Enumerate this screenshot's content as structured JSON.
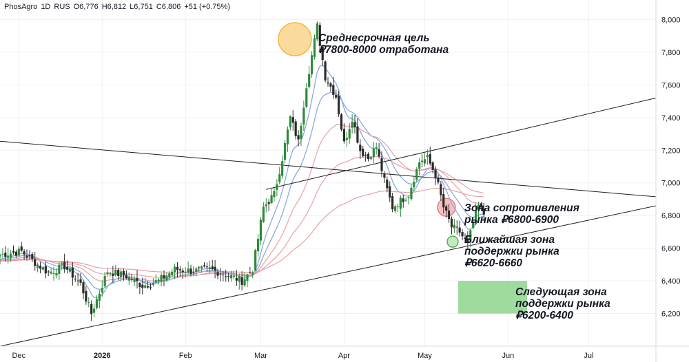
{
  "header": {
    "symbol": "PhosAgro",
    "interval": "1D",
    "exchange": "RUS",
    "open": "O6,776",
    "high": "H6,812",
    "low": "L6,751",
    "close": "C6,806",
    "change": "+51 (+0.75%)"
  },
  "annotations": {
    "target": [
      "Среднесрочная цель",
      "₽7800-8000 отработана"
    ],
    "resistance": [
      "Зона сопротивления",
      "рынка ₽6800-6900"
    ],
    "support1": [
      "Ближайшая зона",
      "поддержки рынка",
      "₽6620-6660"
    ],
    "support2": [
      "Следующая зона",
      "поддержки рынка",
      "₽6200-6400"
    ]
  },
  "colors": {
    "up": "#2e8b3a",
    "down": "#2b2b2b",
    "ma_blue": "#8aa9e0",
    "ma_red": "#e8a0a6",
    "orange": "#f7b73b",
    "green_zone": "#7fcf7f",
    "red_circle": "#f08c8c"
  },
  "chart_data": {
    "type": "candlestick",
    "y_axis": {
      "min": 6000,
      "max": 8120,
      "ticks": [
        6200,
        6400,
        6600,
        6800,
        7000,
        7200,
        7400,
        7600,
        7800,
        8000
      ],
      "tick_labels": [
        "6,200",
        "6,400",
        "6,600",
        "6,800",
        "7,000",
        "7,200",
        "7,400",
        "7,600",
        "7,800",
        "8,000"
      ],
      "position": "right"
    },
    "x_axis": {
      "start": "2025-11-24",
      "end": "2026-07-26",
      "labels": [
        {
          "date": "2025-12-01",
          "text": "Dec"
        },
        {
          "date": "2026-01-01",
          "text": "2026"
        },
        {
          "date": "2026-02-01",
          "text": "Feb"
        },
        {
          "date": "2026-03-01",
          "text": "Mar"
        },
        {
          "date": "2026-04-01",
          "text": "Apr"
        },
        {
          "date": "2026-05-01",
          "text": "May"
        },
        {
          "date": "2026-06-01",
          "text": "Jun"
        },
        {
          "date": "2026-07-01",
          "text": "Jul"
        }
      ]
    },
    "grid": true,
    "close_anchors": [
      [
        "2025-11-24",
        6560
      ],
      [
        "2025-12-02",
        6580
      ],
      [
        "2025-12-08",
        6500
      ],
      [
        "2025-12-12",
        6450
      ],
      [
        "2025-12-18",
        6490
      ],
      [
        "2025-12-24",
        6380
      ],
      [
        "2025-12-28",
        6200
      ],
      [
        "2026-01-03",
        6460
      ],
      [
        "2026-01-10",
        6430
      ],
      [
        "2026-01-16",
        6370
      ],
      [
        "2026-01-22",
        6400
      ],
      [
        "2026-01-28",
        6470
      ],
      [
        "2026-02-04",
        6460
      ],
      [
        "2026-02-10",
        6470
      ],
      [
        "2026-02-16",
        6440
      ],
      [
        "2026-02-22",
        6400
      ],
      [
        "2026-02-26",
        6470
      ],
      [
        "2026-03-02",
        6850
      ],
      [
        "2026-03-06",
        6930
      ],
      [
        "2026-03-09",
        7150
      ],
      [
        "2026-03-12",
        7400
      ],
      [
        "2026-03-15",
        7250
      ],
      [
        "2026-03-18",
        7600
      ],
      [
        "2026-03-22",
        7960
      ],
      [
        "2026-03-25",
        7650
      ],
      [
        "2026-03-29",
        7530
      ],
      [
        "2026-04-01",
        7240
      ],
      [
        "2026-04-04",
        7400
      ],
      [
        "2026-04-07",
        7200
      ],
      [
        "2026-04-10",
        7150
      ],
      [
        "2026-04-13",
        7220
      ],
      [
        "2026-04-16",
        7010
      ],
      [
        "2026-04-19",
        6850
      ],
      [
        "2026-04-22",
        6890
      ],
      [
        "2026-04-25",
        6930
      ],
      [
        "2026-04-29",
        7130
      ],
      [
        "2026-05-02",
        7150
      ],
      [
        "2026-05-05",
        7050
      ],
      [
        "2026-05-08",
        6850
      ],
      [
        "2026-05-11",
        6730
      ],
      [
        "2026-05-14",
        6700
      ],
      [
        "2026-05-17",
        6620
      ],
      [
        "2026-05-19",
        6760
      ],
      [
        "2026-05-21",
        6860
      ],
      [
        "2026-05-23",
        6806
      ]
    ],
    "trendlines": [
      {
        "from": [
          "2025-11-24",
          7255
        ],
        "to": [
          "2026-07-26",
          6915
        ]
      },
      {
        "from": [
          "2025-11-24",
          6000
        ],
        "to": [
          "2026-07-26",
          6860
        ]
      },
      {
        "from": [
          "2026-03-03",
          6960
        ],
        "to": [
          "2026-07-26",
          7520
        ]
      }
    ]
  }
}
